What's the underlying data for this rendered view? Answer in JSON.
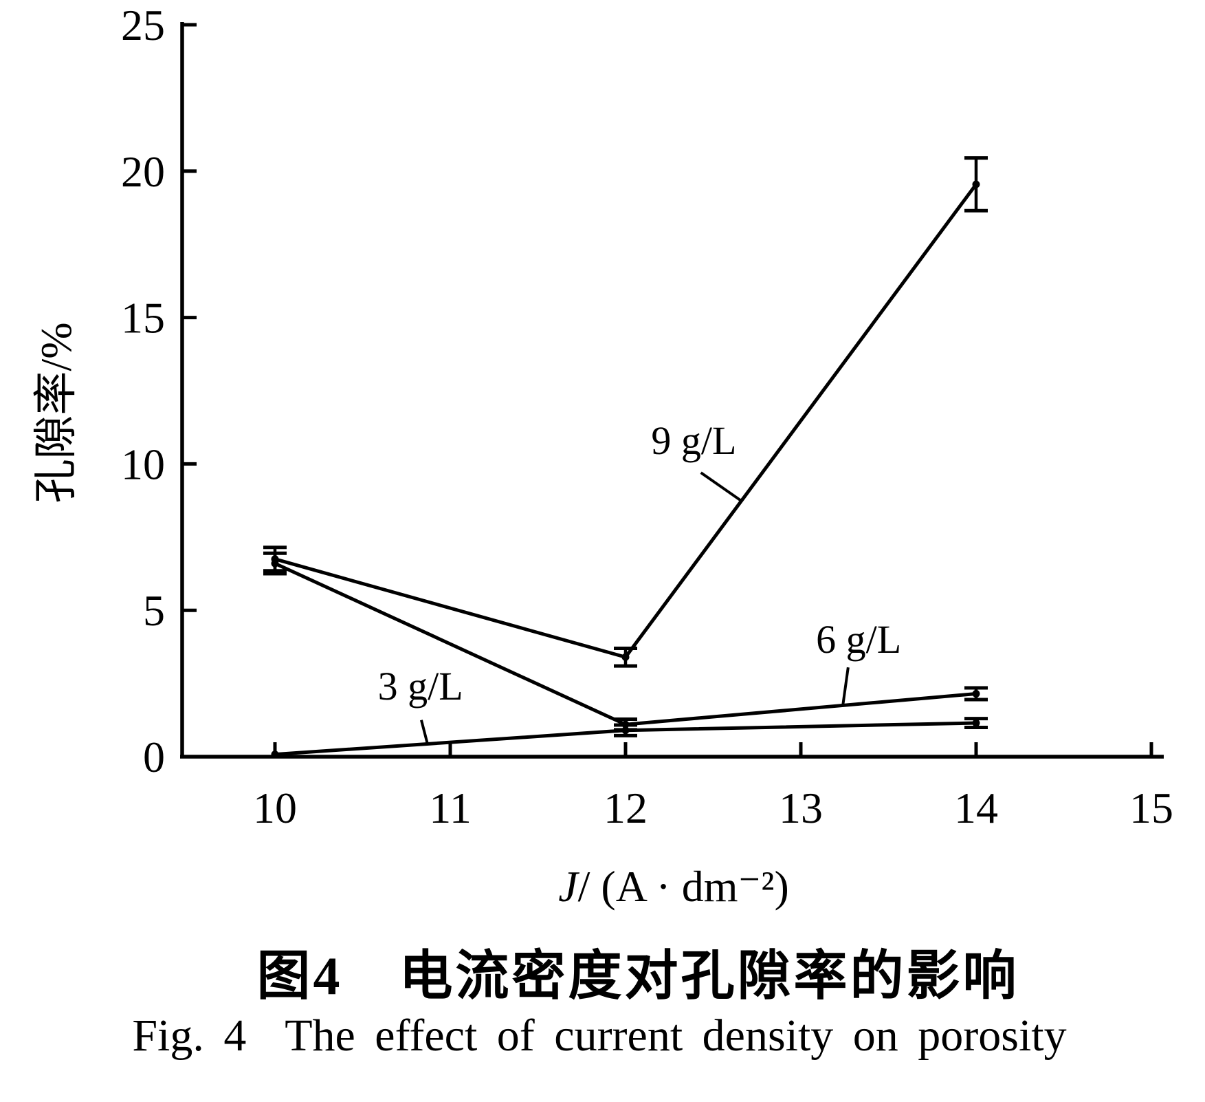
{
  "figure": {
    "caption_zh": "图4　电流密度对孔隙率的影响",
    "caption_en": "Fig. 4  The effect of current density on porosity"
  },
  "chart_data": {
    "type": "line",
    "title": "",
    "xlabel": {
      "symbol": "J",
      "unit": "/ (A · dm⁻²)"
    },
    "ylabel": "孔隙率/%",
    "xlim": [
      10,
      15
    ],
    "ylim": [
      0,
      25
    ],
    "xticks": [
      10,
      11,
      12,
      13,
      14,
      15
    ],
    "yticks": [
      0,
      5,
      10,
      15,
      20,
      25
    ],
    "grid": false,
    "legend_position": "inline-annotations",
    "x": [
      10,
      12,
      14
    ],
    "series": [
      {
        "name": "3 g/L",
        "values": [
          0.08,
          0.9,
          1.15
        ],
        "yerr": [
          0,
          0.18,
          0.15
        ]
      },
      {
        "name": "6 g/L",
        "values": [
          6.6,
          1.1,
          2.15
        ],
        "yerr": [
          0.35,
          0.18,
          0.2
        ]
      },
      {
        "name": "9 g/L",
        "values": [
          6.75,
          3.4,
          19.55
        ],
        "yerr": [
          0.4,
          0.3,
          0.9
        ]
      }
    ],
    "annotations": [
      {
        "text": "3 g/L",
        "x": 10.83,
        "y": 2.42,
        "leader": [
          [
            10.835,
            1.25
          ],
          [
            10.87,
            0.44
          ]
        ]
      },
      {
        "text": "6 g/L",
        "x": 13.33,
        "y": 4.02,
        "leader": [
          [
            13.27,
            3.05
          ],
          [
            13.24,
            1.76
          ]
        ]
      },
      {
        "text": "9 g/L",
        "x": 12.39,
        "y": 10.81,
        "leader": [
          [
            12.43,
            9.7
          ],
          [
            12.66,
            8.74
          ]
        ]
      }
    ],
    "colors": {
      "line": "#000000",
      "background": "#ffffff"
    }
  }
}
